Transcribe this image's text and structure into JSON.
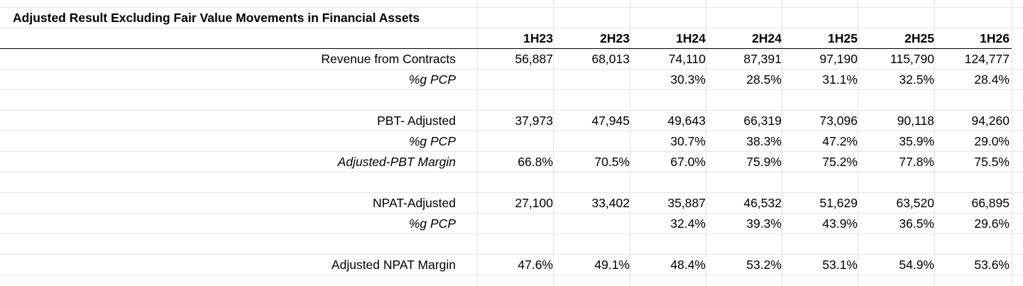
{
  "sheet": {
    "title": "Adjusted Result Excluding Fair Value Movements in Financial Assets",
    "headers": [
      "1H23",
      "2H23",
      "1H24",
      "2H24",
      "1H25",
      "2H25",
      "1H26"
    ],
    "rows": [
      {
        "label": "Revenue from Contracts",
        "style": "normal",
        "values": [
          "56,887",
          "68,013",
          "74,110",
          "87,391",
          "97,190",
          "115,790",
          "124,777"
        ]
      },
      {
        "label": "%g PCP",
        "style": "italic",
        "values": [
          "",
          "",
          "30.3%",
          "28.5%",
          "31.1%",
          "32.5%",
          "28.4%"
        ]
      },
      {
        "label": "",
        "style": "normal",
        "values": [
          "",
          "",
          "",
          "",
          "",
          "",
          ""
        ]
      },
      {
        "label": "PBT- Adjusted",
        "style": "normal",
        "values": [
          "37,973",
          "47,945",
          "49,643",
          "66,319",
          "73,096",
          "90,118",
          "94,260"
        ]
      },
      {
        "label": "%g PCP",
        "style": "italic",
        "values": [
          "",
          "",
          "30.7%",
          "38.3%",
          "47.2%",
          "35.9%",
          "29.0%"
        ]
      },
      {
        "label": "Adjusted-PBT Margin",
        "style": "italic",
        "values": [
          "66.8%",
          "70.5%",
          "67.0%",
          "75.9%",
          "75.2%",
          "77.8%",
          "75.5%"
        ]
      },
      {
        "label": "",
        "style": "normal",
        "values": [
          "",
          "",
          "",
          "",
          "",
          "",
          ""
        ]
      },
      {
        "label": "NPAT-Adjusted",
        "style": "normal",
        "values": [
          "27,100",
          "33,402",
          "35,887",
          "46,532",
          "51,629",
          "63,520",
          "66,895"
        ]
      },
      {
        "label": "%g PCP",
        "style": "italic",
        "values": [
          "",
          "",
          "32.4%",
          "39.3%",
          "43.9%",
          "36.5%",
          "29.6%"
        ]
      },
      {
        "label": "",
        "style": "normal",
        "values": [
          "",
          "",
          "",
          "",
          "",
          "",
          ""
        ]
      },
      {
        "label": "Adjusted NPAT Margin",
        "style": "normal",
        "values": [
          "47.6%",
          "49.1%",
          "48.4%",
          "53.2%",
          "53.1%",
          "54.9%",
          "53.6%"
        ]
      }
    ]
  }
}
